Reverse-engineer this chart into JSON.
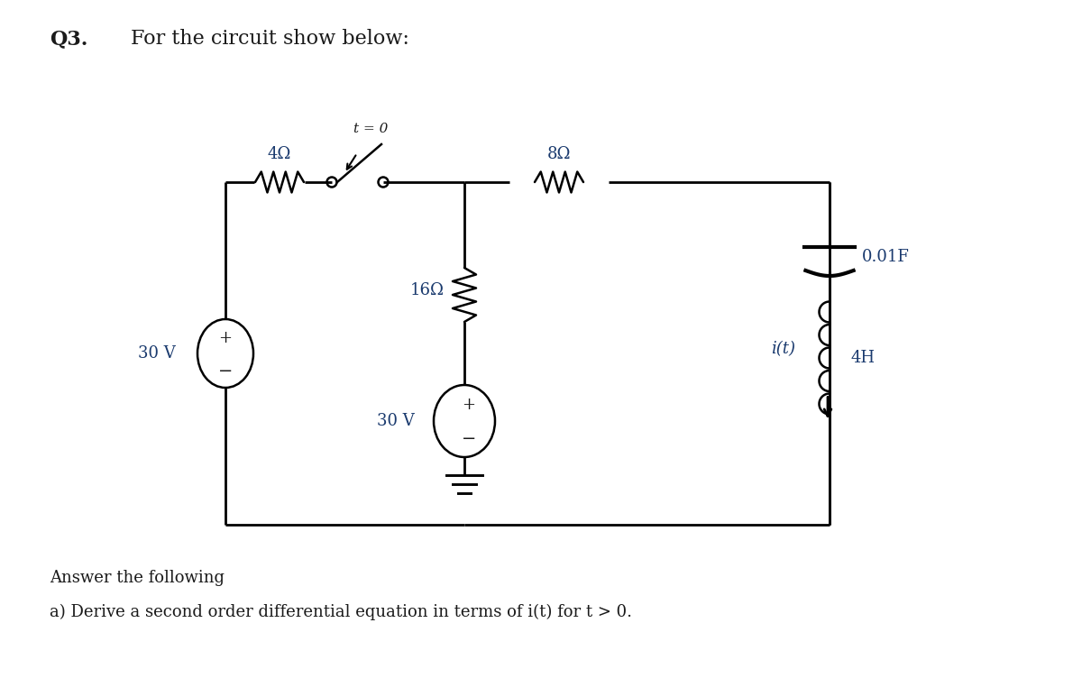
{
  "title_q": "Q3.",
  "title_text": "For the circuit show below:",
  "answer_line1": "Answer the following",
  "answer_line2": "a) Derive a second order differential equation in terms of i(t) for t > 0.",
  "bg_color": "#ffffff",
  "text_color": "#1a1a1a",
  "label_color": "#1a3a6e",
  "resistor_4": "4Ω",
  "resistor_8": "8Ω",
  "resistor_16": "16Ω",
  "capacitor_label": "0.01F",
  "inductor_label": "4H",
  "source_left": "30 V",
  "source_bottom": "30 V",
  "switch_label": "t = 0",
  "current_label": "i(t)"
}
